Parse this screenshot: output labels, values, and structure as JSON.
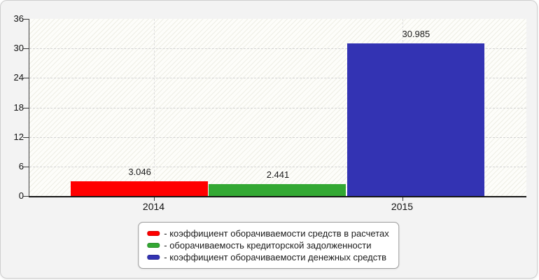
{
  "chart_data": {
    "type": "bar",
    "title": "",
    "xlabel": "",
    "ylabel": "",
    "categories": [
      "2014",
      "2015"
    ],
    "ylim": [
      0,
      36
    ],
    "yticks": [
      0,
      6,
      12,
      18,
      24,
      30,
      36
    ],
    "grid": "dashed horizontal at y ticks, dashed vertical at category centers",
    "legend_position": "bottom-center",
    "series": [
      {
        "id": "receivables-turnover",
        "name": "коэффициент оборачиваемости средств в расчетах",
        "value": 3.046,
        "value_label": "3.046",
        "color": "#ff0000"
      },
      {
        "id": "payables-turnover",
        "name": "оборачиваемость кредиторской задолженности",
        "value": 2.441,
        "value_label": "2.441",
        "color": "#33a833"
      },
      {
        "id": "cash-turnover",
        "name": "коэффициент оборачиваемости денежных средств",
        "value": 30.985,
        "value_label": "30.985",
        "color": "#3333b3"
      }
    ]
  },
  "legend": {
    "items": [
      {
        "label": "- коэффициент оборачиваемости средств в расчетах",
        "color": "#ff0000"
      },
      {
        "label": "- оборачиваемость кредиторской задолженности",
        "color": "#33a833"
      },
      {
        "label": "- коэффициент оборачиваемости денежных средств",
        "color": "#3333b3"
      }
    ]
  },
  "colors": {
    "axis": "#3a3a3a",
    "grid_horizontal": "#d2d2d2",
    "grid_vertical": "#dedede",
    "frame_background": "#f3f3f3",
    "plot_background": "#fdfdfa"
  }
}
